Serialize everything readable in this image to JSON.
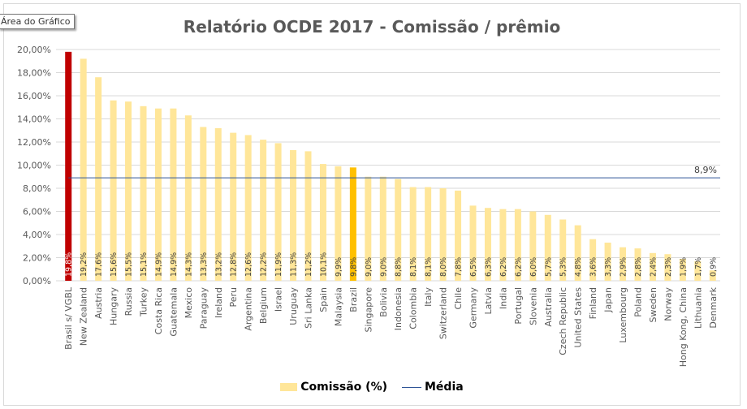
{
  "tooltip": "Área do Gráfico",
  "chart_data": {
    "type": "bar",
    "title": "Relatório OCDE 2017 - Comissão / prêmio",
    "xlabel": "",
    "ylabel": "",
    "ylim": [
      0,
      20
    ],
    "y_ticks": [
      "0,00%",
      "2,00%",
      "4,00%",
      "6,00%",
      "8,00%",
      "10,00%",
      "12,00%",
      "14,00%",
      "16,00%",
      "18,00%",
      "20,00%"
    ],
    "grid": true,
    "legend_position": "bottom",
    "categories": [
      "Brasil s/ VGBL",
      "New Zealand",
      "Austria",
      "Hungary",
      "Russia",
      "Turkey",
      "Costa Rica",
      "Guatemala",
      "Mexico",
      "Paraguay",
      "Ireland",
      "Peru",
      "Argentina",
      "Belgium",
      "Israel",
      "Uruguay",
      "Sri Lanka",
      "Spain",
      "Malaysia",
      "Brazil",
      "Singapore",
      "Bolivia",
      "Indonesia",
      "Colombia",
      "Italy",
      "Switzerland",
      "Chile",
      "Germany",
      "Latvia",
      "India",
      "Portugal",
      "Slovenia",
      "Australia",
      "Czech Republic",
      "United States",
      "Finland",
      "Japan",
      "Luxembourg",
      "Poland",
      "Sweden",
      "Norway",
      "Hong Kong, China",
      "Lithuania",
      "Denmark"
    ],
    "series": [
      {
        "name": "Comissão (%)",
        "type": "bar",
        "color": "#ffe699",
        "values": [
          19.8,
          19.2,
          17.6,
          15.6,
          15.5,
          15.1,
          14.9,
          14.9,
          14.3,
          13.3,
          13.2,
          12.8,
          12.6,
          12.2,
          11.9,
          11.3,
          11.2,
          10.1,
          9.9,
          9.8,
          9.0,
          9.0,
          8.8,
          8.1,
          8.1,
          8.0,
          7.8,
          6.5,
          6.3,
          6.2,
          6.2,
          6.0,
          5.7,
          5.3,
          4.8,
          3.6,
          3.3,
          2.9,
          2.8,
          2.4,
          2.3,
          1.9,
          1.7,
          0.9
        ],
        "data_labels": [
          "19,8%",
          "19,2%",
          "17,6%",
          "15,6%",
          "15,5%",
          "15,1%",
          "14,9%",
          "14,9%",
          "14,3%",
          "13,3%",
          "13,2%",
          "12,8%",
          "12,6%",
          "12,2%",
          "11,9%",
          "11,3%",
          "11,2%",
          "10,1%",
          "9,9%",
          "9,8%",
          "9,0%",
          "9,0%",
          "8,8%",
          "8,1%",
          "8,1%",
          "8,0%",
          "7,8%",
          "6,5%",
          "6,3%",
          "6,2%",
          "6,2%",
          "6,0%",
          "5,7%",
          "5,3%",
          "4,8%",
          "3,6%",
          "3,3%",
          "2,9%",
          "2,8%",
          "2,4%",
          "2,3%",
          "1,9%",
          "1,7%",
          "0,9%"
        ],
        "highlights": {
          "Brasil s/ VGBL": "#c00000",
          "Brazil": "#ffc000"
        }
      },
      {
        "name": "Média",
        "type": "line",
        "color": "#2f5597",
        "value": 8.9,
        "label": "8,9%"
      }
    ]
  }
}
